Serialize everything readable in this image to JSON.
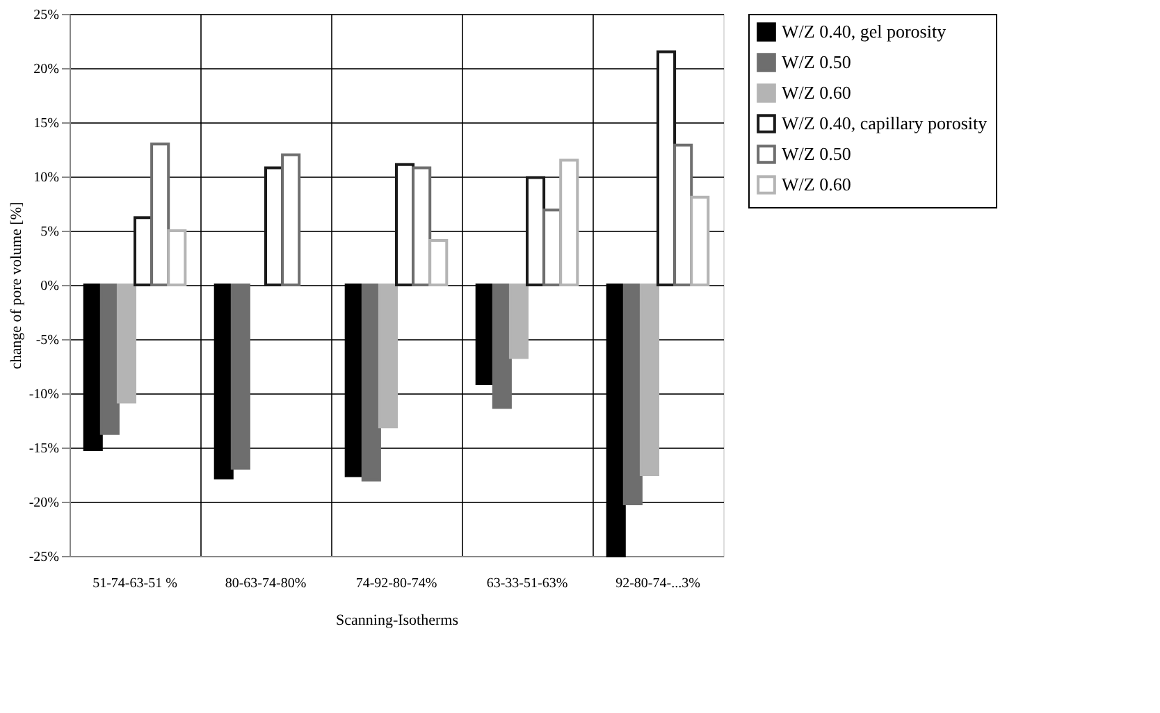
{
  "chart_data": {
    "type": "bar",
    "xlabel": "Scanning-Isotherms",
    "ylabel": "change of pore volume [%]",
    "categories": [
      "51-74-63-51 %",
      "80-63-74-80%",
      "74-92-80-74%",
      "63-33-51-63%",
      "92-80-74-...3%"
    ],
    "series": [
      {
        "name": "W/Z 0.40, gel porosity",
        "color": "#000000",
        "values": [
          -15.2,
          -17.8,
          -17.6,
          -9.1,
          -25
        ]
      },
      {
        "name": "W/Z 0.50",
        "color": "#6e6e6e",
        "values": [
          -13.7,
          -16.9,
          -18.0,
          -11.3,
          -20.2
        ]
      },
      {
        "name": "W/Z 0.60",
        "color": "#b4b4b4",
        "values": [
          -10.8,
          null,
          -13.1,
          -6.7,
          -17.5
        ]
      },
      {
        "name": "W/Z 0.40, capillary porosity",
        "color": "#1a1a1a",
        "line_style": "solid",
        "values": [
          6.2,
          10.8,
          11.1,
          9.9,
          21.5
        ]
      },
      {
        "name": "W/Z 0.50",
        "color": "#6e6e6e",
        "line_style": "solid",
        "values": [
          13.0,
          12.0,
          10.8,
          6.9,
          12.9
        ]
      },
      {
        "name": "W/Z 0.60",
        "color": "#b4b4b4",
        "line_style": "solid",
        "values": [
          5.0,
          null,
          4.1,
          11.5,
          8.1
        ]
      }
    ],
    "ylim": [
      -25,
      25
    ],
    "yticks": [
      {
        "value": -25,
        "label": "-25%"
      },
      {
        "value": -20,
        "label": "-20%"
      },
      {
        "value": -15,
        "label": "-15%"
      },
      {
        "value": -10,
        "label": "-10%"
      },
      {
        "value": -5,
        "label": "-5%"
      },
      {
        "value": 0,
        "label": "0%"
      },
      {
        "value": 5,
        "label": "5%"
      },
      {
        "value": 10,
        "label": "10%"
      },
      {
        "value": 15,
        "label": "15%"
      },
      {
        "value": 20,
        "label": "20%"
      },
      {
        "value": 25,
        "label": "25%"
      }
    ],
    "grid": true,
    "legend": "right"
  }
}
